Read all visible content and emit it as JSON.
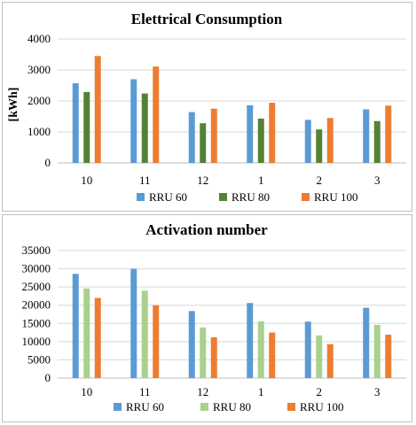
{
  "chart_data": [
    {
      "type": "bar",
      "title": "Elettrical Consumption",
      "xlabel": "",
      "ylabel": "[kWh]",
      "ylim": [
        0,
        4000
      ],
      "yticks": [
        0,
        1000,
        2000,
        3000,
        4000
      ],
      "grid": true,
      "legend_position": "bottom",
      "categories": [
        "10",
        "11",
        "12",
        "1",
        "2",
        "3"
      ],
      "series": [
        {
          "name": "RRU 60",
          "color": "#5b9bd5",
          "values": [
            2570,
            2700,
            1640,
            1860,
            1390,
            1730
          ]
        },
        {
          "name": "RRU 80",
          "color": "#548235",
          "values": [
            2290,
            2240,
            1280,
            1430,
            1080,
            1350
          ]
        },
        {
          "name": "RRU 100",
          "color": "#ed7d31",
          "values": [
            3450,
            3110,
            1750,
            1940,
            1450,
            1850
          ]
        }
      ]
    },
    {
      "type": "bar",
      "title": "Activation number",
      "xlabel": "",
      "ylabel": "",
      "ylim": [
        0,
        35000
      ],
      "yticks": [
        0,
        5000,
        10000,
        15000,
        20000,
        25000,
        30000,
        35000
      ],
      "grid": true,
      "legend_position": "bottom",
      "categories": [
        "10",
        "11",
        "12",
        "1",
        "2",
        "3"
      ],
      "series": [
        {
          "name": "RRU 60",
          "color": "#5b9bd5",
          "values": [
            28600,
            30000,
            18400,
            20600,
            15500,
            19300
          ]
        },
        {
          "name": "RRU 80",
          "color": "#a9d18e",
          "values": [
            24600,
            24000,
            13900,
            15600,
            11700,
            14600
          ]
        },
        {
          "name": "RRU 100",
          "color": "#ed7d31",
          "values": [
            22000,
            20000,
            11200,
            12500,
            9300,
            11900
          ]
        }
      ]
    }
  ]
}
